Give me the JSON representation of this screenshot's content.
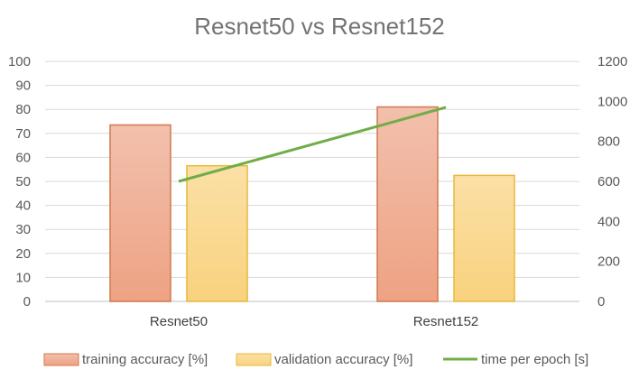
{
  "chart_data": {
    "type": "bar",
    "title": "Resnet50 vs Resnet152",
    "categories": [
      "Resnet50",
      "Resnet152"
    ],
    "series": [
      {
        "name": "training accuracy [%]",
        "kind": "bar",
        "axis": "left",
        "values": [
          73.5,
          81
        ],
        "color": "#e8906a"
      },
      {
        "name": "validation accuracy [%]",
        "kind": "bar",
        "axis": "left",
        "values": [
          56.5,
          52.5
        ],
        "color": "#f5c862"
      },
      {
        "name": "time per epoch [s]",
        "kind": "line",
        "axis": "right",
        "values": [
          600,
          970
        ],
        "color": "#70ad47"
      }
    ],
    "y_left": {
      "ylim": [
        0,
        100
      ],
      "ticks": [
        "0",
        "10",
        "20",
        "30",
        "40",
        "50",
        "60",
        "70",
        "80",
        "90",
        "100"
      ]
    },
    "y_right": {
      "ylim": [
        0,
        1200
      ],
      "ticks": [
        "0",
        "200",
        "400",
        "600",
        "800",
        "1000",
        "1200"
      ]
    },
    "grid": true,
    "legend_position": "bottom"
  }
}
